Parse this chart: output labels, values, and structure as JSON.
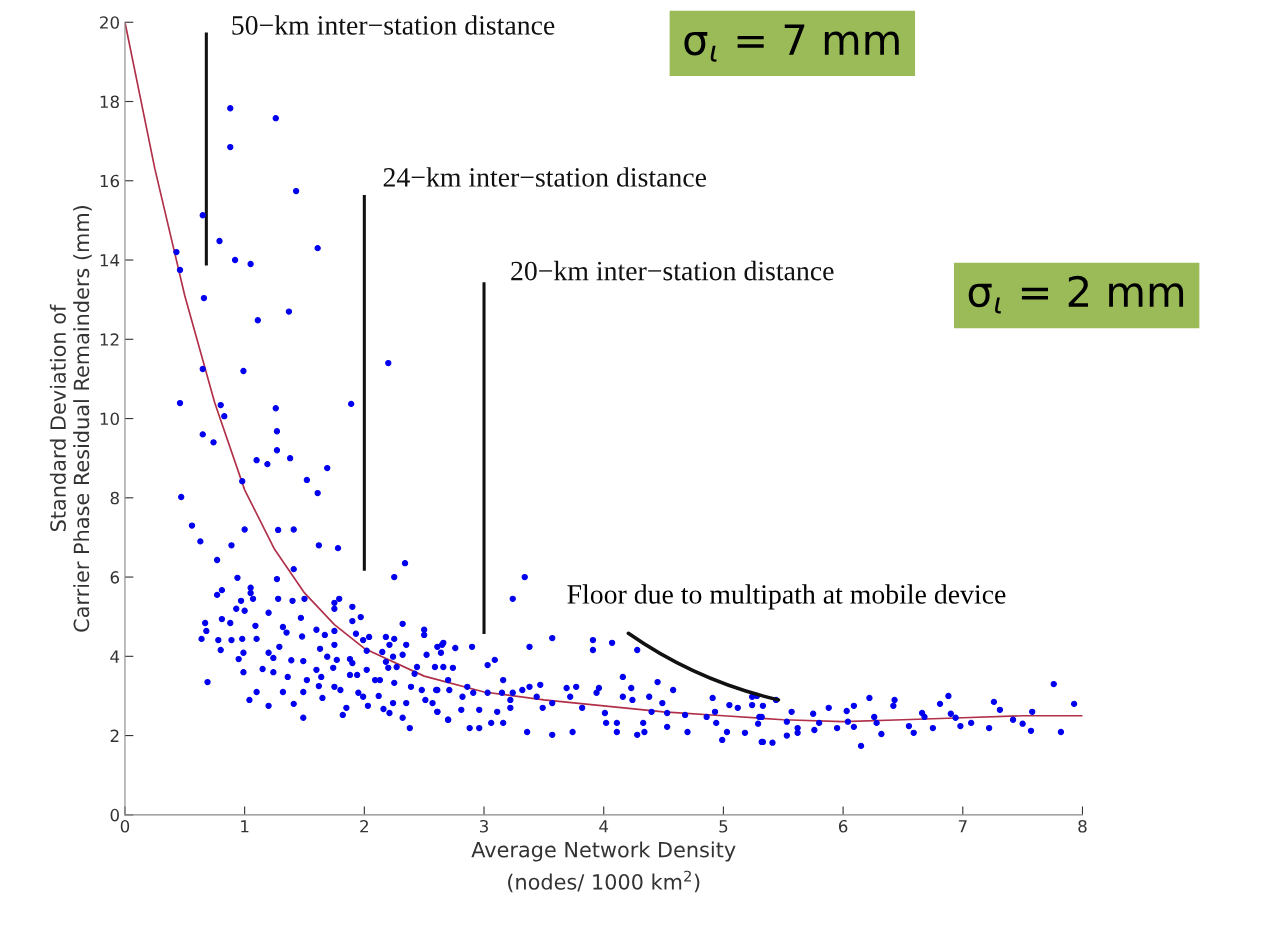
{
  "chart_data": {
    "type": "scatter",
    "xlabel": "Average Network Density\n(nodes/ 1000 km$^{2}$)",
    "ylabel": "Standard Deviation of\nCarrier Phase Residual Remainders (mm)",
    "xlim": [
      0,
      8
    ],
    "ylim": [
      0,
      20
    ],
    "xticks": [
      0,
      1,
      2,
      3,
      4,
      5,
      6,
      7,
      8
    ],
    "yticks": [
      0,
      2,
      4,
      6,
      8,
      10,
      12,
      14,
      16,
      18,
      20
    ],
    "grid": false,
    "series": [
      {
        "color": "#0000ee",
        "marker": "circle",
        "x": [
          0.88,
          1.26,
          0.88,
          1.43,
          0.65,
          1.61,
          0.79,
          0.43,
          0.46,
          0.92,
          1.05,
          0.66,
          1.37,
          1.11,
          0.65,
          0.99,
          2.2,
          0.46,
          0.8,
          1.26,
          1.89,
          0.83,
          1.27,
          0.65,
          0.74,
          1.27,
          1.38,
          1.1,
          1.19,
          1.69,
          1.52,
          0.98,
          0.47,
          1.61,
          1.0,
          0.56,
          1.28,
          0.63,
          1.62,
          0.89,
          1.78,
          1.41,
          2.34,
          2.25,
          3.34,
          3.24,
          0.77,
          0.94,
          0.81,
          0.77,
          1.05,
          1.05,
          1.07,
          0.97,
          0.93,
          1.0,
          0.67,
          0.68,
          0.64,
          0.81,
          0.88,
          0.78,
          0.8,
          0.89,
          0.98,
          1.09,
          1.1,
          0.99,
          0.95,
          0.99,
          0.69,
          1.1,
          1.04,
          1.2,
          1.28,
          1.27,
          1.41,
          1.4,
          1.5,
          1.47,
          1.32,
          1.35,
          1.48,
          1.2,
          1.24,
          1.15,
          1.24,
          1.29,
          1.39,
          1.36,
          1.32,
          1.2,
          1.41,
          1.49,
          1.49,
          1.52,
          1.49,
          1.6,
          1.67,
          1.63,
          1.69,
          1.6,
          1.64,
          1.62,
          1.65,
          1.75,
          1.79,
          1.75,
          1.75,
          1.75,
          1.77,
          1.74,
          1.75,
          1.8,
          1.82,
          1.9,
          1.97,
          1.9,
          1.93,
          1.99,
          2.04,
          1.88,
          1.9,
          1.88,
          1.94,
          2.02,
          2.02,
          1.95,
          1.99,
          2.03,
          1.85,
          2.09,
          2.12,
          2.18,
          2.25,
          2.21,
          2.15,
          2.18,
          2.24,
          2.27,
          2.2,
          2.32,
          2.32,
          2.35,
          2.13,
          2.25,
          2.16,
          2.24,
          2.21,
          2.32,
          2.38,
          2.35,
          2.39,
          2.42,
          2.44,
          2.5,
          2.5,
          2.52,
          2.48,
          2.51,
          2.59,
          2.61,
          2.66,
          2.64,
          2.6,
          2.57,
          2.61,
          2.7,
          2.7,
          2.65,
          2.76,
          2.9,
          2.66,
          2.74,
          2.61,
          2.71,
          2.86,
          2.82,
          2.91,
          2.61,
          2.7,
          2.81,
          2.88,
          2.96,
          2.96,
          3.03,
          3.09,
          3.03,
          3.15,
          3.16,
          3.22,
          3.24,
          3.22,
          3.11,
          3.06,
          3.16,
          3.32,
          3.38,
          3.36,
          3.38,
          3.44,
          3.47,
          3.49,
          3.57,
          3.57,
          3.57,
          3.69,
          3.77,
          3.72,
          3.74,
          3.82,
          3.91,
          3.91,
          3.94,
          3.96,
          4.01,
          4.07,
          4.02,
          4.11,
          4.11,
          4.16,
          4.16,
          4.24,
          4.23,
          4.28,
          4.28,
          4.33,
          4.34,
          4.38,
          4.4,
          4.45,
          4.49,
          4.53,
          4.53,
          4.58,
          4.68,
          4.7,
          4.86,
          4.91,
          4.93,
          4.94,
          4.99,
          5.03,
          5.05,
          5.12,
          5.18,
          5.24,
          5.24,
          5.3,
          5.32,
          5.28,
          5.33,
          5.32,
          5.29,
          5.33,
          5.41,
          5.44,
          5.53,
          5.53,
          5.57,
          5.62,
          5.62,
          5.75,
          5.76,
          5.8,
          5.88,
          5.95,
          6.03,
          6.09,
          6.04,
          6.09,
          6.15,
          6.22,
          6.26,
          6.28,
          6.32,
          6.43,
          6.42,
          6.55,
          6.59,
          6.66,
          6.68,
          6.75,
          6.81,
          6.88,
          6.9,
          6.94,
          6.98,
          7.07,
          7.22,
          7.26,
          7.31,
          7.42,
          7.5,
          7.57,
          7.58,
          7.76,
          7.82,
          7.93
        ],
        "values": [
          17.83,
          17.58,
          16.85,
          15.74,
          15.13,
          14.3,
          14.48,
          14.2,
          13.75,
          14.0,
          13.9,
          13.04,
          12.7,
          12.48,
          11.25,
          11.2,
          11.4,
          10.39,
          10.34,
          10.26,
          10.37,
          10.06,
          9.68,
          9.6,
          9.4,
          9.2,
          9.0,
          8.95,
          8.85,
          8.75,
          8.45,
          8.42,
          8.02,
          8.12,
          7.2,
          7.3,
          7.19,
          6.9,
          6.8,
          6.8,
          6.73,
          7.2,
          6.35,
          6.0,
          6.0,
          5.45,
          6.43,
          5.98,
          5.67,
          5.55,
          5.73,
          5.6,
          5.45,
          5.4,
          5.2,
          5.15,
          4.84,
          4.64,
          4.44,
          4.94,
          4.84,
          4.41,
          4.16,
          4.41,
          4.44,
          4.77,
          4.44,
          4.09,
          3.93,
          3.6,
          3.35,
          3.1,
          2.9,
          5.1,
          5.45,
          5.95,
          6.2,
          5.4,
          5.45,
          4.97,
          4.74,
          4.6,
          4.5,
          4.09,
          3.96,
          3.68,
          3.6,
          4.24,
          3.9,
          3.48,
          3.1,
          2.75,
          2.8,
          2.45,
          3.1,
          3.4,
          3.88,
          4.67,
          4.54,
          4.19,
          3.99,
          3.66,
          3.48,
          3.25,
          2.95,
          5.35,
          5.45,
          5.2,
          4.64,
          4.29,
          3.91,
          3.71,
          3.23,
          3.15,
          2.52,
          5.25,
          4.99,
          4.89,
          4.57,
          4.41,
          4.49,
          3.93,
          3.83,
          3.53,
          3.53,
          4.14,
          3.66,
          3.08,
          2.98,
          2.75,
          2.7,
          3.4,
          3.0,
          4.49,
          4.44,
          4.29,
          4.11,
          3.86,
          3.99,
          3.73,
          3.71,
          4.04,
          4.82,
          4.29,
          3.4,
          3.33,
          2.67,
          2.82,
          2.57,
          2.45,
          2.19,
          2.82,
          3.23,
          3.56,
          3.73,
          4.67,
          4.54,
          4.04,
          3.15,
          2.9,
          3.73,
          4.24,
          4.34,
          4.09,
          3.15,
          2.82,
          2.6,
          2.4,
          3.4,
          4.29,
          4.21,
          4.24,
          3.73,
          3.71,
          3.15,
          3.15,
          3.23,
          2.98,
          3.08,
          2.6,
          2.4,
          2.65,
          2.19,
          2.19,
          2.65,
          3.78,
          3.91,
          3.08,
          3.08,
          3.4,
          2.9,
          3.08,
          2.7,
          2.6,
          2.32,
          2.32,
          3.15,
          4.24,
          2.09,
          3.23,
          2.98,
          3.28,
          2.7,
          2.02,
          4.46,
          2.82,
          3.2,
          3.23,
          2.98,
          2.09,
          2.7,
          4.41,
          4.16,
          3.08,
          3.2,
          2.57,
          4.34,
          2.32,
          2.32,
          2.09,
          3.48,
          2.98,
          2.9,
          3.2,
          2.02,
          4.16,
          2.32,
          2.09,
          2.98,
          2.6,
          3.35,
          2.82,
          2.57,
          2.22,
          3.15,
          2.52,
          2.09,
          2.47,
          2.95,
          2.6,
          2.32,
          1.89,
          2.09,
          2.77,
          2.7,
          2.07,
          2.77,
          2.98,
          2.47,
          1.84,
          3.0,
          2.75,
          2.47,
          2.3,
          1.84,
          1.82,
          2.9,
          2.0,
          2.35,
          2.6,
          2.19,
          2.07,
          2.55,
          2.14,
          2.32,
          2.7,
          2.19,
          2.62,
          2.75,
          2.35,
          2.22,
          1.74,
          2.95,
          2.47,
          2.32,
          2.04,
          2.9,
          2.75,
          2.24,
          2.07,
          2.57,
          2.47,
          2.19,
          2.8,
          3.0,
          2.55,
          2.45,
          2.24,
          2.32,
          2.19,
          2.85,
          2.65,
          2.4,
          2.3,
          2.12,
          2.6,
          3.3,
          2.09,
          2.8
        ]
      },
      {
        "type": "line",
        "color": "#b0304a",
        "x": [
          0,
          0.25,
          0.5,
          0.75,
          1,
          1.25,
          1.5,
          1.75,
          2,
          2.5,
          3,
          3.5,
          4,
          4.5,
          5,
          5.5,
          6,
          6.5,
          7,
          7.5,
          8
        ],
        "values": [
          20,
          16.3,
          13.1,
          10.4,
          8.2,
          6.7,
          5.6,
          4.8,
          4.2,
          3.5,
          3.1,
          2.9,
          2.75,
          2.6,
          2.5,
          2.4,
          2.35,
          2.4,
          2.45,
          2.5,
          2.5
        ]
      },
      {
        "type": "line",
        "color": "#111111",
        "x": [
          0.68,
          0.68
        ],
        "values": [
          13.9,
          19.7
        ]
      },
      {
        "type": "line",
        "color": "#111111",
        "x": [
          2.0,
          2.0
        ],
        "values": [
          6.2,
          15.6
        ]
      },
      {
        "type": "line",
        "color": "#111111",
        "x": [
          3.0,
          3.0
        ],
        "values": [
          4.6,
          13.4
        ]
      }
    ],
    "line_style": "solid",
    "annotations": [
      "50−km inter−station distance",
      "24−km inter−station distance",
      "20−km inter−station distance",
      {
        "text": "Floor due to multipath at mobile device",
        "x": 5.46,
        "y": 2.9
      },
      "σ$_{ι}$ = 7 mm",
      "σ$_{ι}$ = 2 mm"
    ]
  }
}
